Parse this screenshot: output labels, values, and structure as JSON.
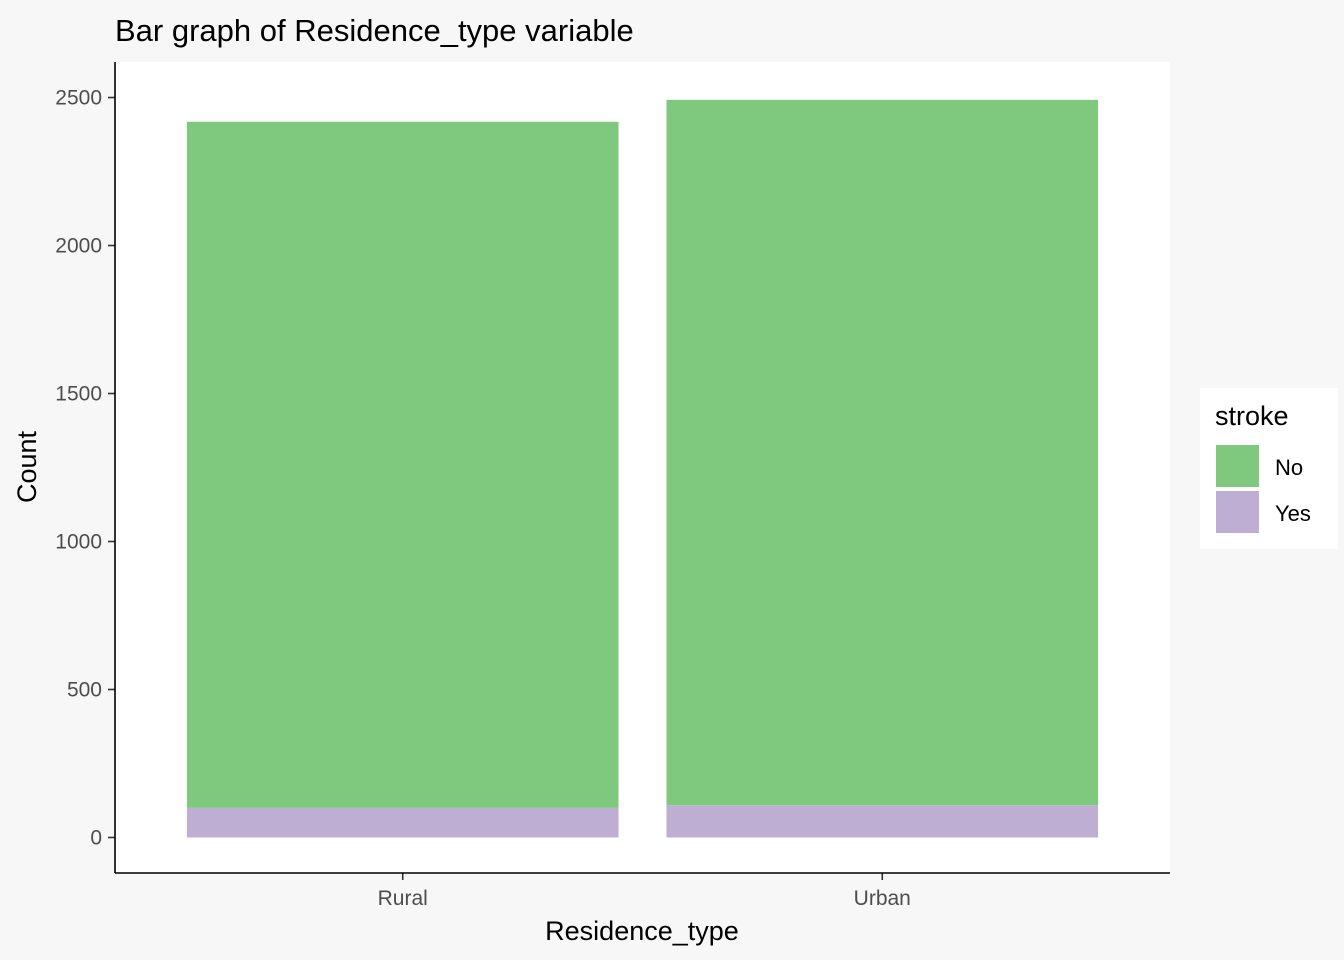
{
  "chart_data": {
    "type": "bar",
    "stacked": true,
    "title": "Bar graph of Residence_type variable",
    "xlabel": "Residence_type",
    "ylabel": "Count",
    "categories": [
      "Rural",
      "Urban"
    ],
    "series": [
      {
        "name": "No",
        "values": [
          2318,
          2383
        ],
        "color": "#7fc97f"
      },
      {
        "name": "Yes",
        "values": [
          100,
          109
        ],
        "color": "#beaed4"
      }
    ],
    "ylim": [
      -120,
      2620
    ],
    "yticks": [
      0,
      500,
      1000,
      1500,
      2000,
      2500
    ],
    "grid": false,
    "legend": {
      "title": "stroke",
      "placement": "right"
    }
  }
}
